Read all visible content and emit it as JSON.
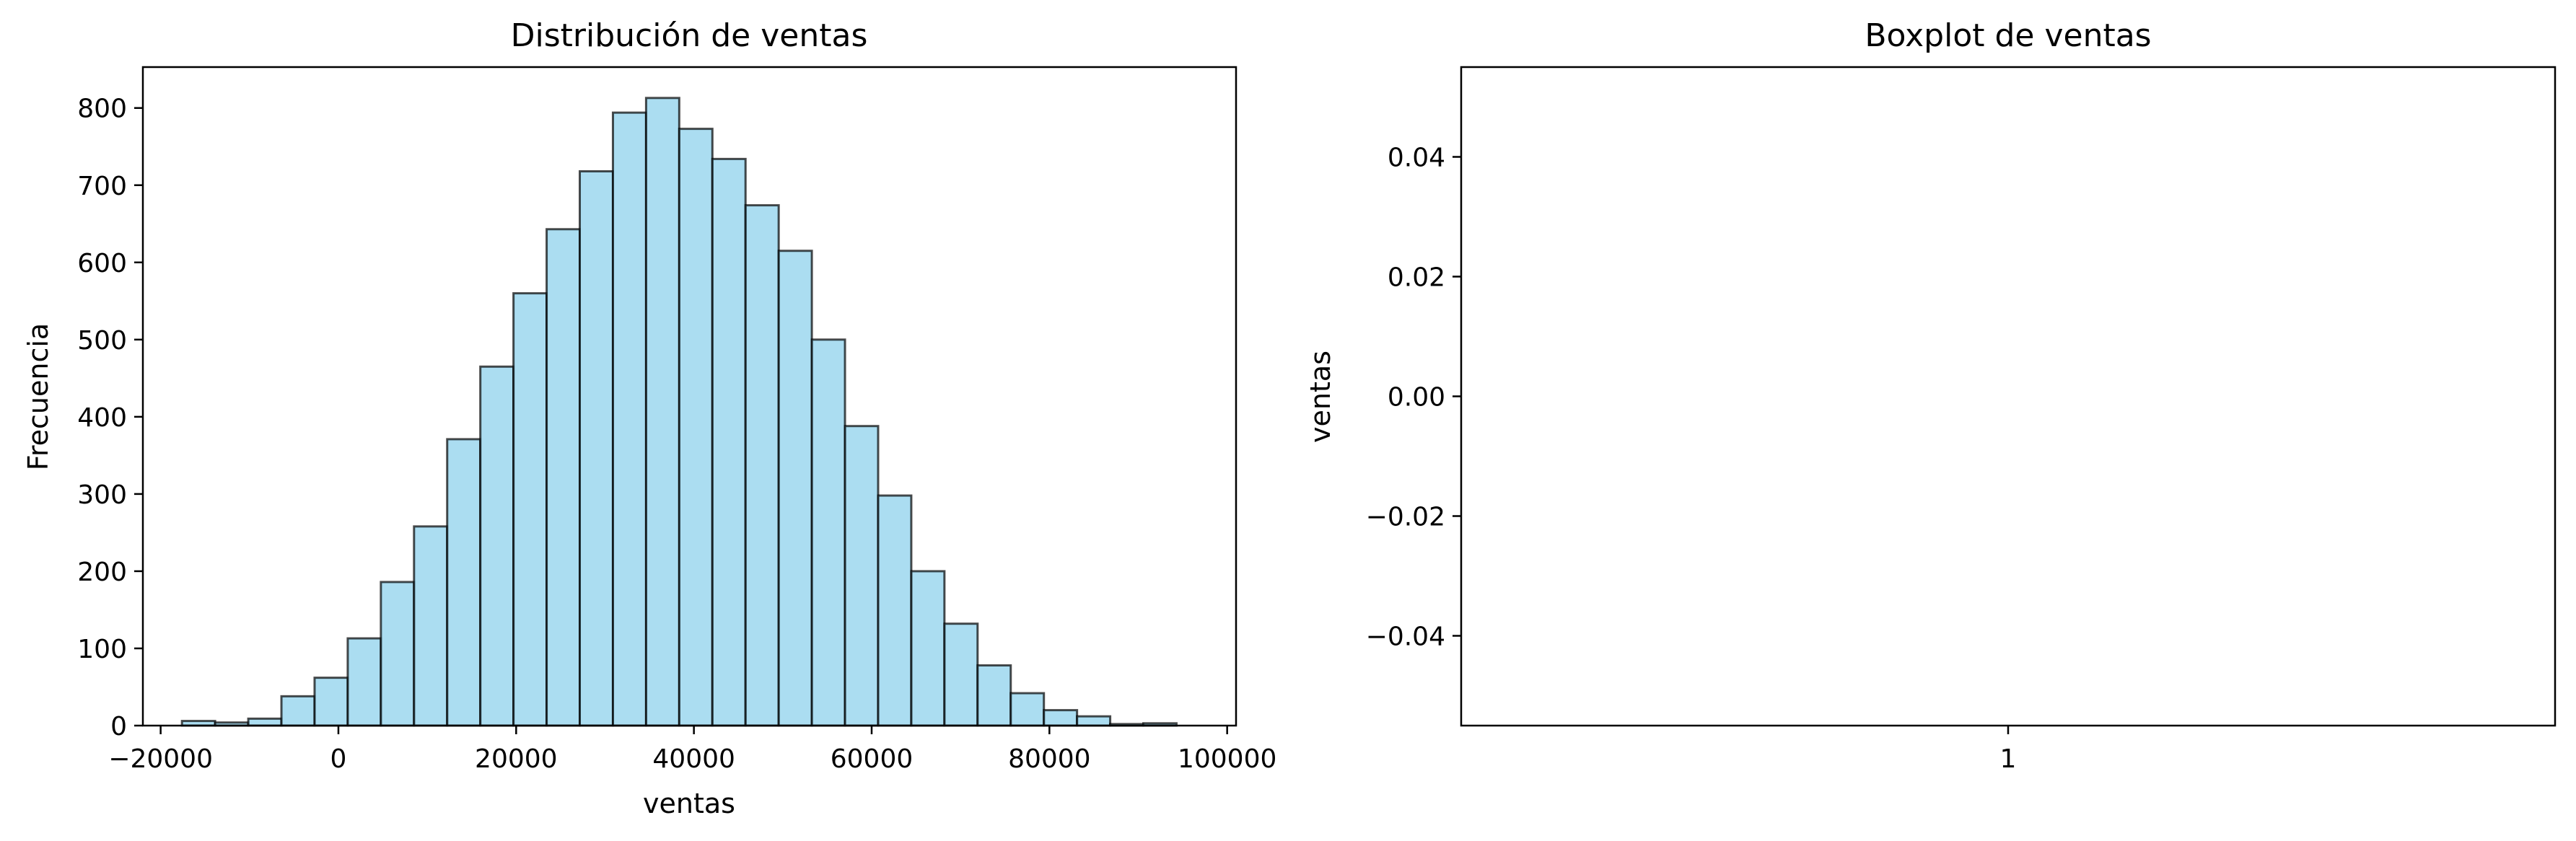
{
  "chart_data": [
    {
      "type": "bar",
      "title": "Distribución de ventas",
      "xlabel": "ventas",
      "ylabel": "Frecuencia",
      "xlim": [
        -22000,
        101000
      ],
      "ylim": [
        0,
        853
      ],
      "xticks": [
        -20000,
        0,
        20000,
        40000,
        60000,
        80000,
        100000
      ],
      "xtick_labels": [
        "−20000",
        "0",
        "20000",
        "40000",
        "60000",
        "80000",
        "100000"
      ],
      "yticks": [
        0,
        100,
        200,
        300,
        400,
        500,
        600,
        700,
        800
      ],
      "ytick_labels": [
        "0",
        "100",
        "200",
        "300",
        "400",
        "500",
        "600",
        "700",
        "800"
      ],
      "bin_width": 3730,
      "bin_starts": [
        -17600,
        -13870,
        -10140,
        -6410,
        -2680,
        1050,
        4780,
        8510,
        12240,
        15970,
        19700,
        23430,
        27160,
        30890,
        34620,
        38350,
        42080,
        45810,
        49540,
        53270,
        57000,
        60730,
        64460,
        68190,
        71920,
        75650,
        79380,
        83110,
        86840,
        90570,
        94300
      ],
      "values": [
        6,
        4,
        9,
        38,
        62,
        113,
        186,
        258,
        371,
        465,
        560,
        643,
        718,
        794,
        813,
        773,
        734,
        674,
        615,
        500,
        388,
        298,
        200,
        132,
        78,
        42,
        20,
        12,
        2,
        3,
        0
      ],
      "colors": {
        "bar_fill": "#87ceeb",
        "bar_fill_opacity": 0.7,
        "bar_edge": "#000000",
        "bar_edge_opacity": 0.7
      },
      "grid": false,
      "legend": null
    },
    {
      "type": "box",
      "title": "Boxplot de ventas",
      "xlabel": "",
      "ylabel": "ventas",
      "ylim": [
        -0.055,
        0.055
      ],
      "yticks": [
        -0.04,
        -0.02,
        0.0,
        0.02,
        0.04
      ],
      "ytick_labels": [
        "−0.04",
        "−0.02",
        "0.00",
        "0.02",
        "0.04"
      ],
      "xticks": [
        1
      ],
      "xtick_labels": [
        "1"
      ],
      "values": [],
      "grid": false,
      "legend": null
    }
  ]
}
